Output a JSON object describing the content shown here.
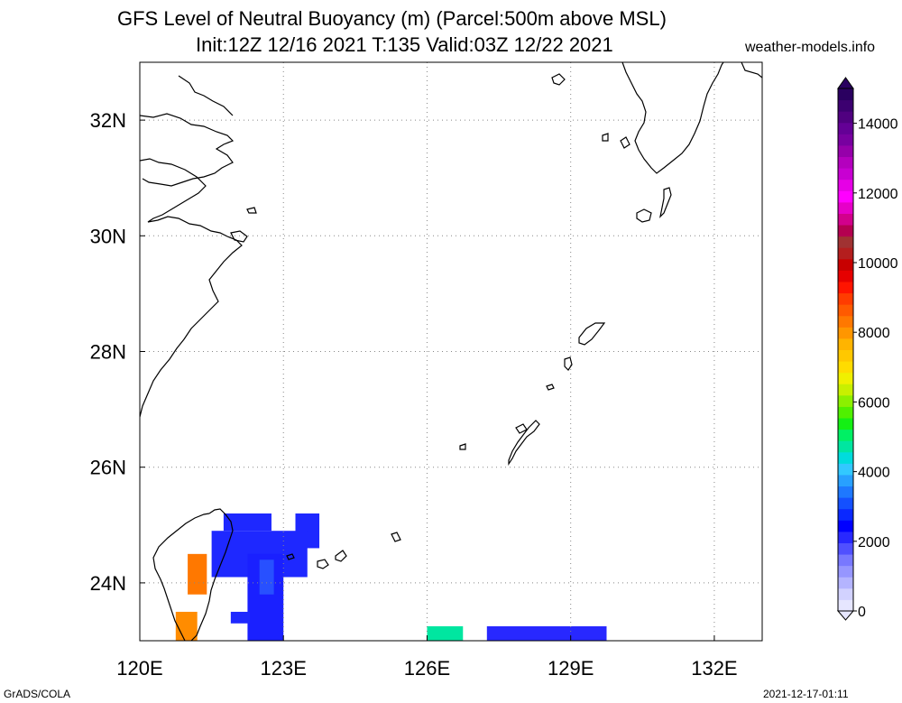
{
  "title": {
    "line1": "GFS Level of Neutral Buoyancy (m) (Parcel:500m above MSL)",
    "line2": "Init:12Z 12/16 2021 T:135 Valid:03Z 12/22 2021"
  },
  "credit": "weather-models.info",
  "footer": {
    "left": "GrADS/COLA",
    "right": "2021-12-17-01:11"
  },
  "map": {
    "lon_range": [
      120,
      133
    ],
    "lat_range": [
      23,
      33
    ],
    "lon_ticks": [
      {
        "value": 120,
        "label": "120E"
      },
      {
        "value": 123,
        "label": "123E"
      },
      {
        "value": 126,
        "label": "126E"
      },
      {
        "value": 129,
        "label": "129E"
      },
      {
        "value": 132,
        "label": "132E"
      }
    ],
    "lat_ticks": [
      {
        "value": 24,
        "label": "24N"
      },
      {
        "value": 26,
        "label": "26N"
      },
      {
        "value": 28,
        "label": "28N"
      },
      {
        "value": 30,
        "label": "30N"
      },
      {
        "value": 32,
        "label": "32N"
      }
    ],
    "grid": "dotted",
    "coastline_color": "#000000"
  },
  "colorbar": {
    "min": 0,
    "max": 15000,
    "labels": [
      {
        "value": 0,
        "label": "0"
      },
      {
        "value": 2000,
        "label": "2000"
      },
      {
        "value": 4000,
        "label": "4000"
      },
      {
        "value": 6000,
        "label": "6000"
      },
      {
        "value": 8000,
        "label": "8000"
      },
      {
        "value": 10000,
        "label": "10000"
      },
      {
        "value": 12000,
        "label": "12000"
      },
      {
        "value": 14000,
        "label": "14000"
      }
    ],
    "colors": [
      "#e6e6ff",
      "#d2d2ff",
      "#b4b4ff",
      "#9696ff",
      "#7878ff",
      "#5050ff",
      "#2828ff",
      "#0000ff",
      "#0a28ff",
      "#1450ff",
      "#1e78ff",
      "#28a0ff",
      "#32c8ff",
      "#00dcdc",
      "#00e6a0",
      "#00f064",
      "#14f014",
      "#50f000",
      "#8cf000",
      "#c8f000",
      "#f0f000",
      "#ffdc00",
      "#ffc800",
      "#ffb400",
      "#ff9600",
      "#ff7800",
      "#ff5a00",
      "#ff3c00",
      "#ff1400",
      "#e60000",
      "#c80000",
      "#b41e1e",
      "#a03232",
      "#b40050",
      "#d2008c",
      "#e600c8",
      "#ff00ff",
      "#e600e6",
      "#c800d2",
      "#b400be",
      "#9600aa",
      "#7800a0",
      "#640096",
      "#500080",
      "#3c0070",
      "#2a0060"
    ]
  },
  "cells": [
    {
      "lon": [
        121.75,
        122.75
      ],
      "lat": [
        24.9,
        25.2
      ],
      "value": 1200,
      "color": "#1e28ff"
    },
    {
      "lon": [
        123.25,
        123.75
      ],
      "lat": [
        24.6,
        25.2
      ],
      "value": 1300,
      "color": "#1e28ff"
    },
    {
      "lon": [
        121.5,
        123.5
      ],
      "lat": [
        24.1,
        24.9
      ],
      "value": 1100,
      "color": "#1e28ff"
    },
    {
      "lon": [
        122.25,
        123.0
      ],
      "lat": [
        23.0,
        24.5
      ],
      "value": 1100,
      "color": "#1a20ff"
    },
    {
      "lon": [
        121.9,
        122.3
      ],
      "lat": [
        23.3,
        23.5
      ],
      "value": 1200,
      "color": "#1e28ff"
    },
    {
      "lon": [
        122.5,
        122.8
      ],
      "lat": [
        23.8,
        24.4
      ],
      "value": 1600,
      "color": "#2850ff"
    },
    {
      "lon": [
        121.0,
        121.4
      ],
      "lat": [
        23.8,
        24.5
      ],
      "value": 9000,
      "color": "#ff7800"
    },
    {
      "lon": [
        120.75,
        121.2
      ],
      "lat": [
        23.0,
        23.5
      ],
      "value": 8500,
      "color": "#ff8c00"
    },
    {
      "lon": [
        126.0,
        126.75
      ],
      "lat": [
        23.0,
        23.25
      ],
      "value": 4000,
      "color": "#00e6a0"
    },
    {
      "lon": [
        127.25,
        129.75
      ],
      "lat": [
        23.0,
        23.25
      ],
      "value": 1200,
      "color": "#2828ff"
    }
  ]
}
